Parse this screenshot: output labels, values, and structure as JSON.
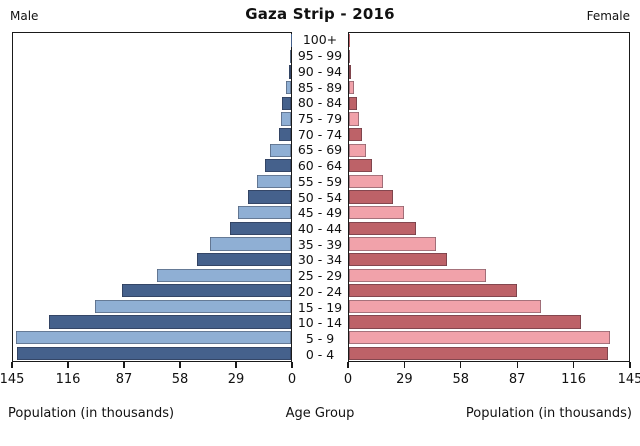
{
  "title": "Gaza Strip - 2016",
  "left_header": "Male",
  "right_header": "Female",
  "captions": {
    "left": "Population (in thousands)",
    "center": "Age Group",
    "right": "Population (in thousands)"
  },
  "chart_data": {
    "type": "bar",
    "subtype": "population-pyramid",
    "title": "Gaza Strip - 2016",
    "unit": "thousands of people",
    "categories_order": "top-to-bottom",
    "categories": [
      "100+",
      "95 - 99",
      "90 - 94",
      "85 - 89",
      "80 - 84",
      "75 - 79",
      "70 - 74",
      "65 - 69",
      "60 - 64",
      "55 - 59",
      "50 - 54",
      "45 - 49",
      "40 - 44",
      "35 - 39",
      "30 - 34",
      "25 - 29",
      "20 - 24",
      "15 - 19",
      "10 - 14",
      "5 - 9",
      "0 - 4"
    ],
    "series": [
      {
        "name": "Male",
        "side": "left",
        "values": [
          0.1,
          0.5,
          1.2,
          2.5,
          4.5,
          5,
          6.5,
          11,
          13.5,
          18,
          22.5,
          27.5,
          32,
          42.5,
          49,
          70,
          88,
          102,
          126,
          143.5,
          143
        ]
      },
      {
        "name": "Female",
        "side": "right",
        "values": [
          0.1,
          0.5,
          1,
          2.5,
          4,
          5,
          6.5,
          9,
          12,
          17.5,
          23,
          28.5,
          34.5,
          45,
          51,
          71,
          87,
          99.5,
          120,
          135,
          134
        ]
      }
    ],
    "xlabel": "Population (in thousands)",
    "center_axis_label": "Age Group",
    "xlim": [
      0,
      145
    ],
    "xticks": [
      0,
      29,
      58,
      87,
      116,
      145
    ],
    "grid": false,
    "legend": "none (Male left panel, Female right panel)",
    "colors": {
      "male_dark": "#45618C",
      "male_light": "#8FAFD4",
      "female_dark": "#BD6268",
      "female_light": "#F1A2AA",
      "axis": "#1a1a1a"
    },
    "color_pattern": "bars alternate dark/light by row; 0-4 dark, 5-9 light, etc."
  }
}
